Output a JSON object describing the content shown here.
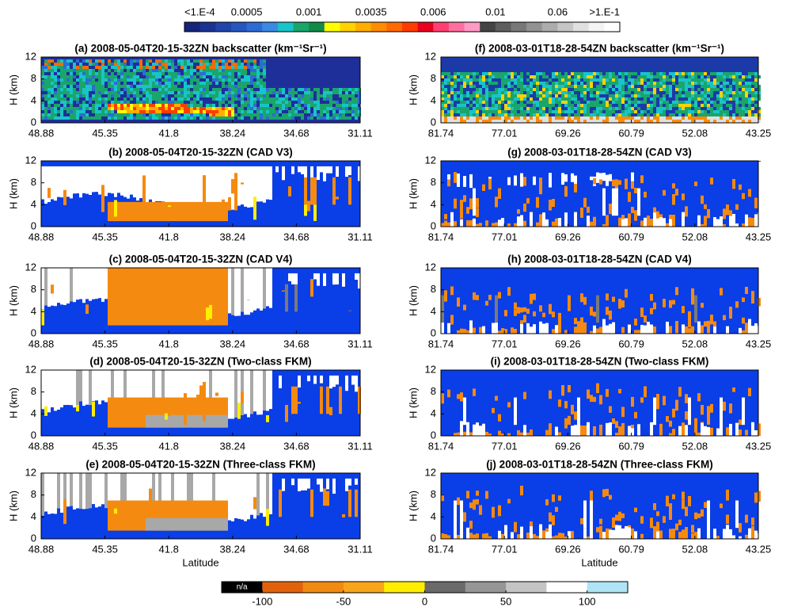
{
  "chart_data": [
    {
      "type": "colorbar",
      "position": "top",
      "ticklabels": [
        "<1.E-4",
        "0.0005",
        "0.001",
        "0.0035",
        "0.006",
        "0.01",
        "0.06",
        ">1.E-1"
      ],
      "colors": [
        "#15247a",
        "#1b3392",
        "#2044aa",
        "#2656c0",
        "#2c6cd4",
        "#3a8ae4",
        "#18c4c8",
        "#1aa56a",
        "#128a48",
        "#ffff00",
        "#ffd200",
        "#ffae00",
        "#ff8c00",
        "#ff6a00",
        "#ff3c00",
        "#e8001e",
        "#ff4070",
        "#ff70a0",
        "#ff9ac4",
        "#444444",
        "#5e5e5e",
        "#787878",
        "#929292",
        "#acacac",
        "#c6c6c6",
        "#e0e0e0",
        "#f4f4f4",
        "#ffffff"
      ]
    },
    {
      "type": "heatmap",
      "title": "(a) 2008-05-04T20-15-32ZN backscatter (km⁻¹Sr⁻¹)",
      "ylabel": "H (km)",
      "ylim": [
        0,
        12
      ],
      "yticks": [
        0,
        4,
        8,
        12
      ],
      "xticklabels": [
        "48.88",
        "45.35",
        "41.8",
        "38.24",
        "34.68",
        "31.11"
      ]
    },
    {
      "type": "heatmap",
      "title": "(b) 2008-05-04T20-15-32ZN (CAD V3)",
      "ylabel": "H (km)",
      "ylim": [
        0,
        12
      ],
      "yticks": [
        0,
        4,
        8,
        12
      ],
      "xticklabels": [
        "48.88",
        "45.35",
        "41.8",
        "38.24",
        "34.68",
        "31.11"
      ]
    },
    {
      "type": "heatmap",
      "title": "(c) 2008-05-04T20-15-32ZN (CAD V4)",
      "ylabel": "H (km)",
      "ylim": [
        0,
        12
      ],
      "yticks": [
        0,
        4,
        8,
        12
      ],
      "xticklabels": [
        "48.88",
        "45.35",
        "41.8",
        "38.24",
        "34.68",
        "31.11"
      ]
    },
    {
      "type": "heatmap",
      "title": "(d) 2008-05-04T20-15-32ZN (Two-class FKM)",
      "ylabel": "H (km)",
      "ylim": [
        0,
        12
      ],
      "yticks": [
        0,
        4,
        8,
        12
      ],
      "xticklabels": [
        "48.88",
        "45.35",
        "41.8",
        "38.24",
        "34.68",
        "31.11"
      ]
    },
    {
      "type": "heatmap",
      "title": "(e) 2008-05-04T20-15-32ZN (Three-class FKM)",
      "ylabel": "H (km)",
      "xlabel": "Latitude",
      "ylim": [
        0,
        12
      ],
      "yticks": [
        0,
        4,
        8,
        12
      ],
      "xticklabels": [
        "48.88",
        "45.35",
        "41.8",
        "38.24",
        "34.68",
        "31.11"
      ]
    },
    {
      "type": "heatmap",
      "title": "(f) 2008-03-01T18-28-54ZN backscatter (km⁻¹Sr⁻¹)",
      "ylabel": "H (km)",
      "ylim": [
        0,
        12
      ],
      "yticks": [
        0,
        4,
        8,
        12
      ],
      "xticklabels": [
        "81.74",
        "77.01",
        "69.26",
        "60.79",
        "52.08",
        "43.25"
      ]
    },
    {
      "type": "heatmap",
      "title": "(g) 2008-03-01T18-28-54ZN (CAD V3)",
      "ylabel": "H (km)",
      "ylim": [
        0,
        12
      ],
      "yticks": [
        0,
        4,
        8,
        12
      ],
      "xticklabels": [
        "81.74",
        "77.01",
        "69.26",
        "60.79",
        "52.08",
        "43.25"
      ]
    },
    {
      "type": "heatmap",
      "title": "(h) 2008-03-01T18-28-54ZN (CAD V4)",
      "ylabel": "H (km)",
      "ylim": [
        0,
        12
      ],
      "yticks": [
        0,
        4,
        8,
        12
      ],
      "xticklabels": [
        "81.74",
        "77.01",
        "69.26",
        "60.79",
        "52.08",
        "43.25"
      ]
    },
    {
      "type": "heatmap",
      "title": "(i) 2008-03-01T18-28-54ZN (Two-class FKM)",
      "ylabel": "H (km)",
      "ylim": [
        0,
        12
      ],
      "yticks": [
        0,
        4,
        8,
        12
      ],
      "xticklabels": [
        "81.74",
        "77.01",
        "69.26",
        "60.79",
        "52.08",
        "43.25"
      ]
    },
    {
      "type": "heatmap",
      "title": "(j) 2008-03-01T18-28-54ZN (Three-class FKM)",
      "ylabel": "H (km)",
      "xlabel": "Latitude",
      "ylim": [
        0,
        12
      ],
      "yticks": [
        0,
        4,
        8,
        12
      ],
      "xticklabels": [
        "81.74",
        "77.01",
        "69.26",
        "60.79",
        "52.08",
        "43.25"
      ]
    },
    {
      "type": "colorbar",
      "position": "bottom",
      "na_label": "n/a",
      "lim": [
        -125,
        125
      ],
      "ticks": [
        -100,
        -50,
        0,
        50,
        100
      ],
      "colors": [
        "#000000",
        "#e2620c",
        "#f18a12",
        "#f8a51c",
        "#ffee00",
        "#6a6a6a",
        "#969696",
        "#c4c4c4",
        "#ffffff",
        "#aee4f6"
      ]
    }
  ]
}
